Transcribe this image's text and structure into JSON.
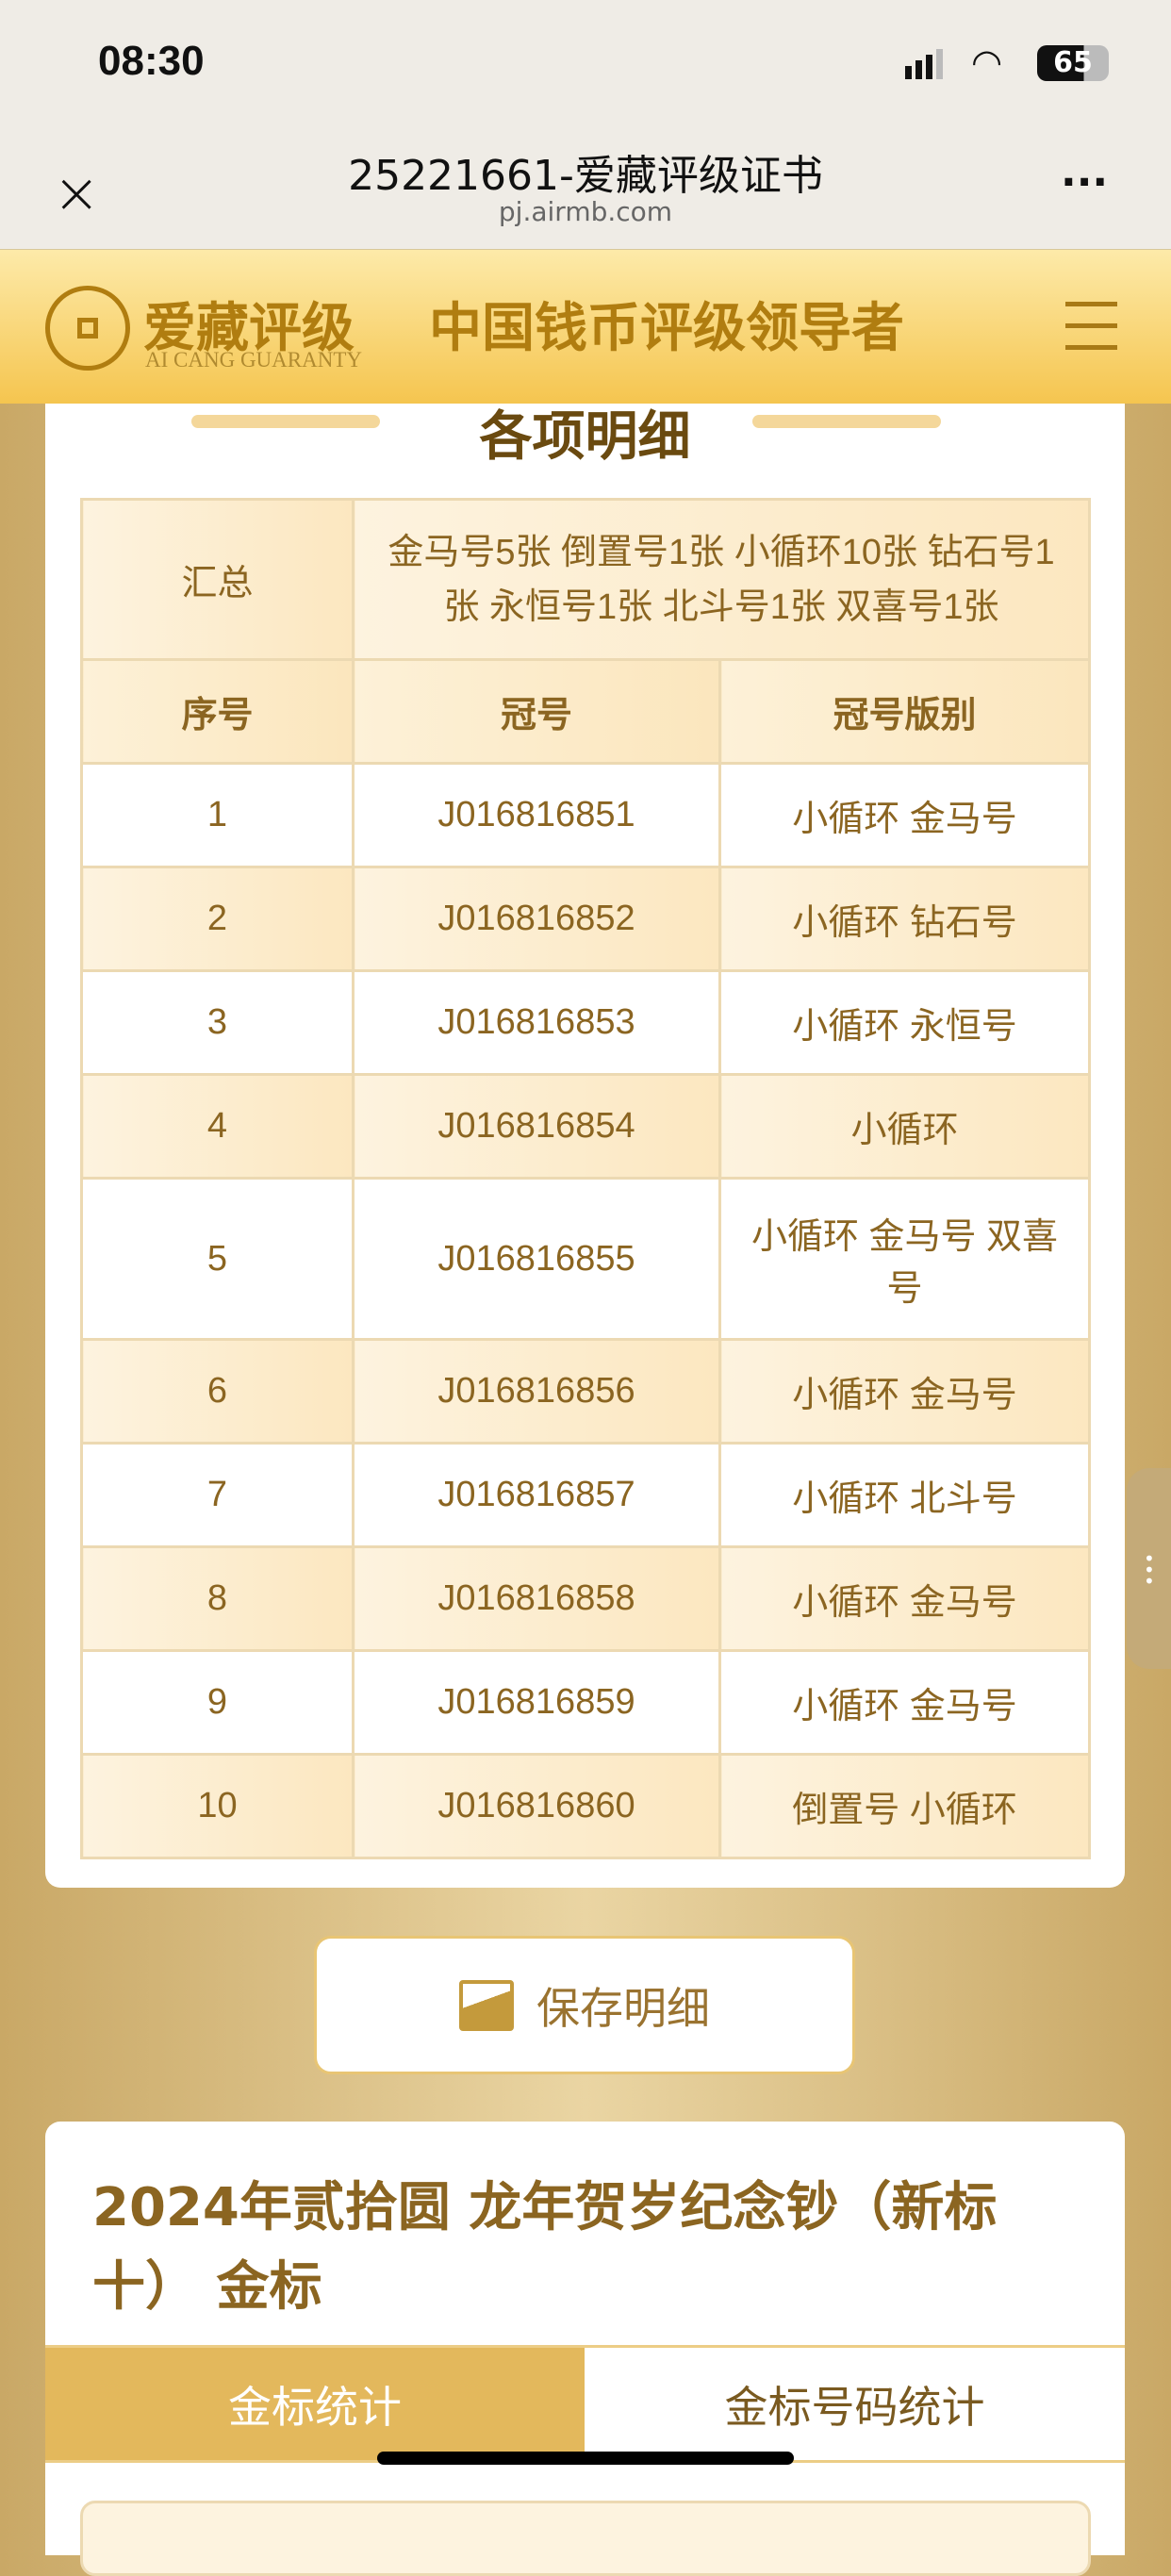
{
  "status": {
    "time": "08:30",
    "battery": "65"
  },
  "browser": {
    "title": "25221661-爱藏评级证书",
    "url": "pj.airmb.com"
  },
  "header": {
    "brand_cn": "爱藏评级",
    "brand_en": "AI CANG GUARANTY",
    "slogan": "中国钱币评级领导者",
    "logo_text": "爱藏"
  },
  "details": {
    "title": "各项明细",
    "summary_label": "汇总",
    "summary": "金马号5张 倒置号1张 小循环10张 钻石号1张 永恒号1张 北斗号1张 双喜号1张",
    "columns": [
      "序号",
      "冠号",
      "冠号版别"
    ],
    "rows": [
      [
        "1",
        "J016816851",
        "小循环 金马号"
      ],
      [
        "2",
        "J016816852",
        "小循环 钻石号"
      ],
      [
        "3",
        "J016816853",
        "小循环 永恒号"
      ],
      [
        "4",
        "J016816854",
        "小循环"
      ],
      [
        "5",
        "J016816855",
        "小循环 金马号 双喜号"
      ],
      [
        "6",
        "J016816856",
        "小循环 金马号"
      ],
      [
        "7",
        "J016816857",
        "小循环 北斗号"
      ],
      [
        "8",
        "J016816858",
        "小循环 金马号"
      ],
      [
        "9",
        "J016816859",
        "小循环 金马号"
      ],
      [
        "10",
        "J016816860",
        "倒置号 小循环"
      ]
    ]
  },
  "save_label": "保存明细",
  "product": {
    "title": "2024年贰拾圆 龙年贺岁纪念钞（新标十） 金标",
    "tabs": [
      "金标统计",
      "金标号码统计"
    ],
    "active_tab": 0
  }
}
